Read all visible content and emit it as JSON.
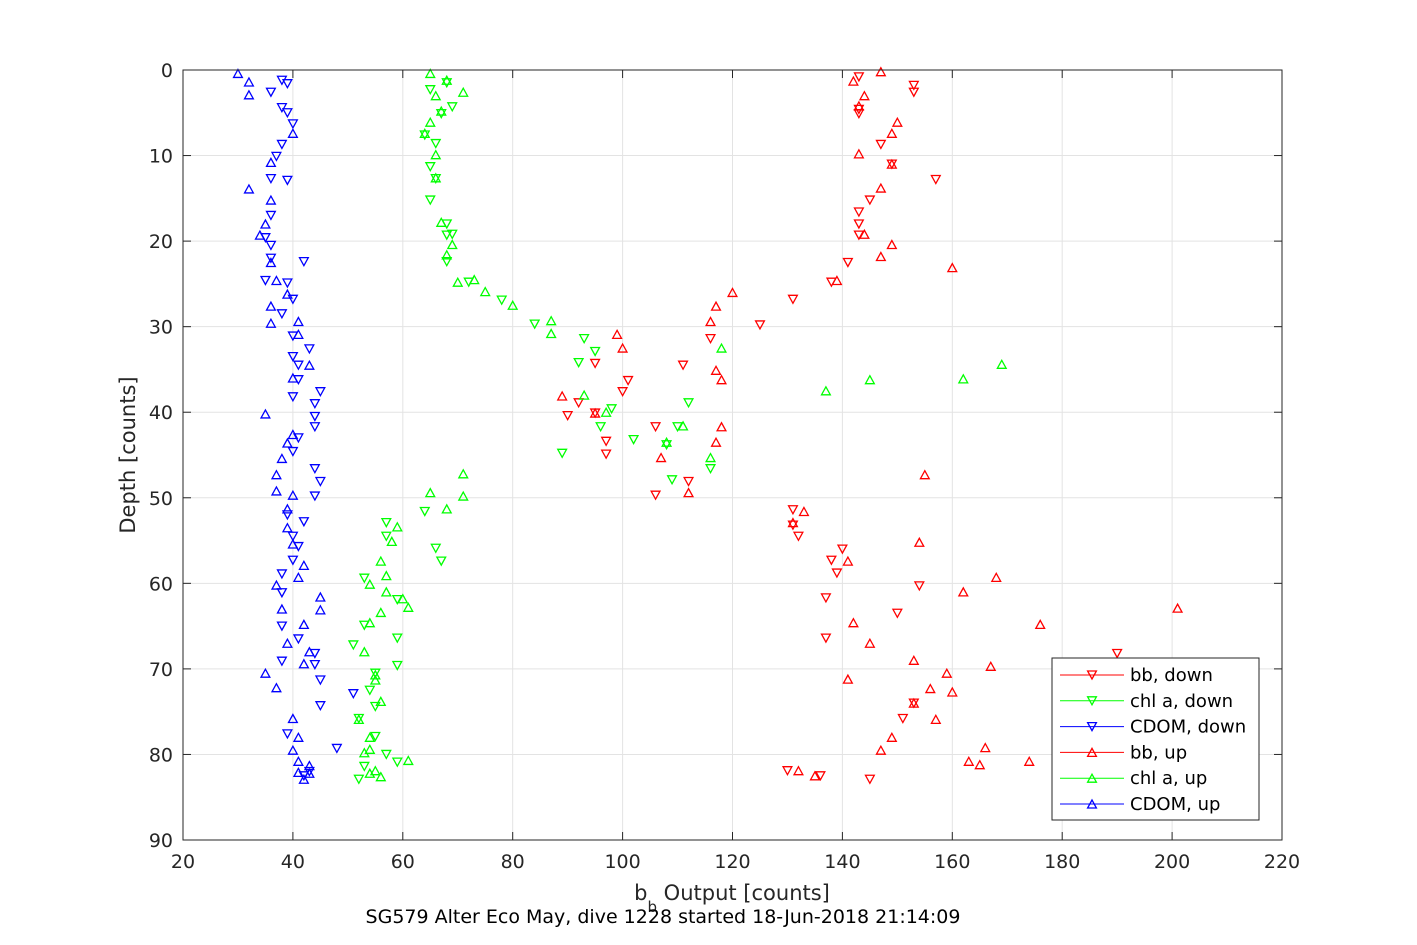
{
  "chart_data": {
    "type": "scatter",
    "title": "",
    "xlabel": "b_b Output [counts]",
    "xlabel_main": "b",
    "xlabel_sub": "b",
    "xlabel_rest": " Output [counts]",
    "ylabel": "Depth [counts]",
    "caption": "SG579 Alter Eco May, dive 1228 started 18-Jun-2018 21:14:09",
    "xlim": [
      20,
      220
    ],
    "ylim": [
      0,
      90
    ],
    "y_reversed": true,
    "grid": true,
    "legend_position": "bottom-right",
    "x_ticks": [
      "20",
      "40",
      "60",
      "80",
      "100",
      "120",
      "140",
      "160",
      "180",
      "200",
      "220"
    ],
    "y_ticks": [
      "0",
      "10",
      "20",
      "30",
      "40",
      "50",
      "60",
      "70",
      "80",
      "90"
    ],
    "series": [
      {
        "name": "bb, down",
        "color": "#ff0000",
        "marker": "triangle-down",
        "points": [
          [
            143,
            0.8
          ],
          [
            153,
            1.8
          ],
          [
            153,
            2.6
          ],
          [
            143,
            4.6
          ],
          [
            143,
            5.1
          ],
          [
            147,
            8.7
          ],
          [
            149,
            11.0
          ],
          [
            157,
            12.8
          ],
          [
            145,
            15.2
          ],
          [
            143,
            16.6
          ],
          [
            143,
            18.0
          ],
          [
            143,
            19.3
          ],
          [
            141,
            22.5
          ],
          [
            138,
            24.8
          ],
          [
            131,
            26.8
          ],
          [
            125,
            29.8
          ],
          [
            116,
            31.4
          ],
          [
            95,
            34.3
          ],
          [
            111,
            34.5
          ],
          [
            92,
            38.9
          ],
          [
            101,
            36.3
          ],
          [
            100,
            37.6
          ],
          [
            90,
            40.4
          ],
          [
            95,
            40.1
          ],
          [
            106,
            41.7
          ],
          [
            97,
            43.4
          ],
          [
            97,
            44.9
          ],
          [
            106,
            49.7
          ],
          [
            112,
            48.1
          ],
          [
            131,
            51.4
          ],
          [
            131,
            53.2
          ],
          [
            132,
            54.5
          ],
          [
            140,
            56.0
          ],
          [
            138,
            57.3
          ],
          [
            139,
            58.8
          ],
          [
            154,
            60.3
          ],
          [
            137,
            61.7
          ],
          [
            150,
            63.5
          ],
          [
            137,
            66.4
          ],
          [
            190,
            68.2
          ],
          [
            153,
            74.0
          ],
          [
            151,
            75.8
          ],
          [
            130,
            81.9
          ],
          [
            136,
            82.5
          ],
          [
            145,
            82.9
          ]
        ]
      },
      {
        "name": "chl a, down",
        "color": "#00ff00",
        "marker": "triangle-down",
        "points": [
          [
            68,
            1.5
          ],
          [
            65,
            2.3
          ],
          [
            69,
            4.3
          ],
          [
            67,
            5.1
          ],
          [
            66,
            8.6
          ],
          [
            64,
            7.6
          ],
          [
            65,
            11.3
          ],
          [
            66,
            12.7
          ],
          [
            65,
            15.2
          ],
          [
            68,
            18.0
          ],
          [
            68,
            19.3
          ],
          [
            69,
            19.2
          ],
          [
            68,
            22.4
          ],
          [
            72,
            24.8
          ],
          [
            78,
            26.9
          ],
          [
            84,
            29.7
          ],
          [
            93,
            31.4
          ],
          [
            95,
            32.9
          ],
          [
            92,
            34.2
          ],
          [
            98,
            39.6
          ],
          [
            96,
            41.7
          ],
          [
            102,
            43.2
          ],
          [
            89,
            44.8
          ],
          [
            110,
            41.7
          ],
          [
            108,
            43.8
          ],
          [
            112,
            38.9
          ],
          [
            116,
            46.6
          ],
          [
            109,
            47.9
          ],
          [
            64,
            51.6
          ],
          [
            66,
            55.9
          ],
          [
            67,
            57.4
          ],
          [
            57,
            52.9
          ],
          [
            57,
            54.5
          ],
          [
            53,
            59.4
          ],
          [
            59,
            61.9
          ],
          [
            53,
            64.9
          ],
          [
            59,
            66.4
          ],
          [
            51,
            67.2
          ],
          [
            59,
            69.6
          ],
          [
            55,
            70.5
          ],
          [
            54,
            72.5
          ],
          [
            55,
            74.4
          ],
          [
            52,
            75.8
          ],
          [
            55,
            77.9
          ],
          [
            57,
            80.0
          ],
          [
            59,
            80.9
          ],
          [
            53,
            81.4
          ],
          [
            52,
            82.9
          ]
        ]
      },
      {
        "name": "CDOM, down",
        "color": "#0000ff",
        "marker": "triangle-down",
        "points": [
          [
            38,
            1.2
          ],
          [
            39,
            1.6
          ],
          [
            36,
            2.6
          ],
          [
            38,
            4.4
          ],
          [
            39,
            5.0
          ],
          [
            40,
            6.3
          ],
          [
            38,
            8.7
          ],
          [
            37,
            10.1
          ],
          [
            36,
            12.7
          ],
          [
            39,
            12.9
          ],
          [
            36,
            17.0
          ],
          [
            35,
            19.6
          ],
          [
            36,
            20.5
          ],
          [
            36,
            22.0
          ],
          [
            42,
            22.4
          ],
          [
            35,
            24.6
          ],
          [
            39,
            24.9
          ],
          [
            40,
            26.8
          ],
          [
            38,
            28.5
          ],
          [
            40,
            31.1
          ],
          [
            43,
            32.6
          ],
          [
            40,
            33.5
          ],
          [
            41,
            34.5
          ],
          [
            41,
            36.2
          ],
          [
            40,
            38.2
          ],
          [
            45,
            37.6
          ],
          [
            44,
            39.0
          ],
          [
            44,
            40.5
          ],
          [
            44,
            41.7
          ],
          [
            41,
            43.0
          ],
          [
            40,
            44.6
          ],
          [
            44,
            46.6
          ],
          [
            45,
            48.1
          ],
          [
            44,
            49.8
          ],
          [
            39,
            52.0
          ],
          [
            42,
            52.8
          ],
          [
            40,
            54.5
          ],
          [
            41,
            55.7
          ],
          [
            40,
            57.3
          ],
          [
            38,
            58.9
          ],
          [
            38,
            61.1
          ],
          [
            38,
            65.0
          ],
          [
            41,
            66.5
          ],
          [
            44,
            68.2
          ],
          [
            38,
            69.1
          ],
          [
            44,
            69.5
          ],
          [
            45,
            71.3
          ],
          [
            51,
            72.9
          ],
          [
            45,
            74.3
          ],
          [
            39,
            77.6
          ],
          [
            48,
            79.3
          ],
          [
            43,
            82.0
          ],
          [
            42,
            82.5
          ]
        ]
      },
      {
        "name": "bb, up",
        "color": "#ff0000",
        "marker": "triangle-up",
        "points": [
          [
            147,
            0.2
          ],
          [
            142,
            1.3
          ],
          [
            144,
            3.0
          ],
          [
            143,
            4.2
          ],
          [
            150,
            6.1
          ],
          [
            149,
            7.4
          ],
          [
            149,
            11.0
          ],
          [
            147,
            13.8
          ],
          [
            143,
            9.8
          ],
          [
            144,
            19.2
          ],
          [
            149,
            20.4
          ],
          [
            147,
            21.8
          ],
          [
            160,
            23.1
          ],
          [
            139,
            24.6
          ],
          [
            120,
            26.0
          ],
          [
            117,
            27.6
          ],
          [
            116,
            29.4
          ],
          [
            99,
            30.9
          ],
          [
            100,
            32.5
          ],
          [
            117,
            35.1
          ],
          [
            118,
            36.2
          ],
          [
            95,
            40.1
          ],
          [
            89,
            38.1
          ],
          [
            118,
            41.7
          ],
          [
            117,
            43.5
          ],
          [
            107,
            45.3
          ],
          [
            112,
            49.4
          ],
          [
            155,
            47.3
          ],
          [
            133,
            51.6
          ],
          [
            131,
            52.9
          ],
          [
            154,
            55.2
          ],
          [
            141,
            57.4
          ],
          [
            168,
            59.3
          ],
          [
            162,
            61.0
          ],
          [
            201,
            62.9
          ],
          [
            142,
            64.6
          ],
          [
            176,
            64.8
          ],
          [
            145,
            67.0
          ],
          [
            153,
            69.0
          ],
          [
            167,
            69.7
          ],
          [
            159,
            70.5
          ],
          [
            141,
            71.2
          ],
          [
            156,
            72.3
          ],
          [
            160,
            72.7
          ],
          [
            153,
            74.0
          ],
          [
            157,
            75.9
          ],
          [
            149,
            78.0
          ],
          [
            147,
            79.5
          ],
          [
            166,
            79.2
          ],
          [
            163,
            80.8
          ],
          [
            165,
            81.2
          ],
          [
            174,
            80.8
          ],
          [
            135,
            82.5
          ],
          [
            132,
            81.9
          ]
        ]
      },
      {
        "name": "chl a, up",
        "color": "#00ff00",
        "marker": "triangle-up",
        "points": [
          [
            65,
            0.4
          ],
          [
            68,
            1.2
          ],
          [
            71,
            2.6
          ],
          [
            66,
            3.0
          ],
          [
            67,
            4.8
          ],
          [
            65,
            6.1
          ],
          [
            64,
            7.4
          ],
          [
            66,
            9.9
          ],
          [
            66,
            12.6
          ],
          [
            67,
            17.8
          ],
          [
            69,
            20.4
          ],
          [
            68,
            21.6
          ],
          [
            70,
            24.8
          ],
          [
            73,
            24.5
          ],
          [
            75,
            25.9
          ],
          [
            80,
            27.5
          ],
          [
            87,
            29.3
          ],
          [
            87,
            30.8
          ],
          [
            118,
            32.5
          ],
          [
            169,
            34.4
          ],
          [
            145,
            36.2
          ],
          [
            162,
            36.1
          ],
          [
            137,
            37.5
          ],
          [
            93,
            38.0
          ],
          [
            97,
            40.0
          ],
          [
            111,
            41.6
          ],
          [
            108,
            43.5
          ],
          [
            116,
            45.3
          ],
          [
            71,
            47.2
          ],
          [
            71,
            49.8
          ],
          [
            65,
            49.4
          ],
          [
            68,
            51.3
          ],
          [
            59,
            53.4
          ],
          [
            58,
            55.1
          ],
          [
            56,
            57.4
          ],
          [
            57,
            59.1
          ],
          [
            54,
            60.1
          ],
          [
            57,
            61.0
          ],
          [
            60,
            61.8
          ],
          [
            61,
            62.8
          ],
          [
            54,
            64.6
          ],
          [
            56,
            63.4
          ],
          [
            53,
            68.0
          ],
          [
            55,
            70.7
          ],
          [
            55,
            71.3
          ],
          [
            56,
            73.8
          ],
          [
            52,
            75.9
          ],
          [
            54,
            78.0
          ],
          [
            54,
            79.4
          ],
          [
            53,
            79.8
          ],
          [
            61,
            80.7
          ],
          [
            55,
            81.9
          ],
          [
            54,
            82.2
          ],
          [
            56,
            82.6
          ]
        ]
      },
      {
        "name": "CDOM, up",
        "color": "#0000ff",
        "marker": "triangle-up",
        "points": [
          [
            30,
            0.4
          ],
          [
            32,
            1.4
          ],
          [
            32,
            2.9
          ],
          [
            40,
            7.4
          ],
          [
            36,
            10.8
          ],
          [
            32,
            13.9
          ],
          [
            36,
            15.2
          ],
          [
            35,
            18.0
          ],
          [
            34,
            19.3
          ],
          [
            36,
            22.5
          ],
          [
            37,
            24.6
          ],
          [
            39,
            26.2
          ],
          [
            36,
            27.6
          ],
          [
            36,
            29.6
          ],
          [
            41,
            29.4
          ],
          [
            41,
            30.9
          ],
          [
            43,
            34.5
          ],
          [
            40,
            36.0
          ],
          [
            35,
            40.2
          ],
          [
            40,
            42.6
          ],
          [
            39,
            43.6
          ],
          [
            38,
            45.4
          ],
          [
            37,
            47.3
          ],
          [
            37,
            49.2
          ],
          [
            40,
            49.7
          ],
          [
            39,
            51.3
          ],
          [
            39,
            53.5
          ],
          [
            40,
            55.4
          ],
          [
            42,
            57.9
          ],
          [
            37,
            60.2
          ],
          [
            41,
            59.3
          ],
          [
            45,
            61.6
          ],
          [
            45,
            63.1
          ],
          [
            38,
            63.0
          ],
          [
            42,
            64.8
          ],
          [
            39,
            67.0
          ],
          [
            43,
            68.0
          ],
          [
            42,
            69.4
          ],
          [
            35,
            70.5
          ],
          [
            37,
            72.2
          ],
          [
            40,
            75.8
          ],
          [
            41,
            78.0
          ],
          [
            40,
            79.5
          ],
          [
            41,
            80.8
          ],
          [
            43,
            81.3
          ],
          [
            43,
            82.2
          ],
          [
            41,
            82.1
          ],
          [
            42,
            82.9
          ]
        ]
      }
    ]
  }
}
